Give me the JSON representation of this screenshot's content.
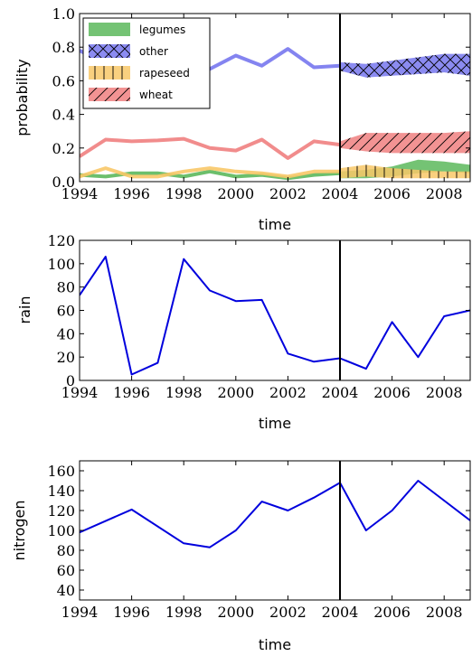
{
  "chart_data": [
    {
      "type": "area",
      "xlabel": "time",
      "ylabel": "probability",
      "xlim": [
        1994,
        2009
      ],
      "ylim": [
        0.0,
        1.0
      ],
      "x_ticks": [
        1994,
        1996,
        1998,
        2000,
        2002,
        2004,
        2006,
        2008
      ],
      "y_ticks": [
        0.0,
        0.2,
        0.4,
        0.6,
        0.8,
        1.0
      ],
      "y_tick_labels": [
        "0.0",
        "0.2",
        "0.4",
        "0.6",
        "0.8",
        "1.0"
      ],
      "forecast_start": 2004,
      "legend_position": "upper-left",
      "series": [
        {
          "name": "legumes",
          "color": "#5cb85c",
          "hatch": "none",
          "x": [
            1994,
            1995,
            1996,
            1997,
            1998,
            1999,
            2000,
            2001,
            2002,
            2003,
            2004
          ],
          "values": [
            0.04,
            0.03,
            0.05,
            0.05,
            0.03,
            0.06,
            0.03,
            0.04,
            0.02,
            0.04,
            0.05
          ],
          "forecast": {
            "x": [
              2004,
              2005,
              2006,
              2007,
              2008,
              2009
            ],
            "lower": [
              0.02,
              0.02,
              0.03,
              0.05,
              0.06,
              0.05
            ],
            "upper": [
              0.06,
              0.07,
              0.09,
              0.13,
              0.12,
              0.1
            ]
          }
        },
        {
          "name": "other",
          "color": "#7777ee",
          "hatch": "cross",
          "x": [
            1994,
            1995,
            1996,
            1997,
            1998,
            1999,
            2000,
            2001,
            2002,
            2003,
            2004
          ],
          "values": [
            0.78,
            0.7,
            0.7,
            0.68,
            0.68,
            0.67,
            0.75,
            0.69,
            0.79,
            0.68,
            0.69
          ],
          "forecast": {
            "x": [
              2004,
              2005,
              2006,
              2007,
              2008,
              2009
            ],
            "lower": [
              0.66,
              0.62,
              0.63,
              0.64,
              0.65,
              0.63
            ],
            "upper": [
              0.71,
              0.7,
              0.72,
              0.74,
              0.76,
              0.76
            ]
          }
        },
        {
          "name": "rapeseed",
          "color": "#f8c868",
          "hatch": "vertical",
          "x": [
            1994,
            1995,
            1996,
            1997,
            1998,
            1999,
            2000,
            2001,
            2002,
            2003,
            2004
          ],
          "values": [
            0.03,
            0.08,
            0.03,
            0.03,
            0.06,
            0.08,
            0.06,
            0.05,
            0.03,
            0.06,
            0.06
          ],
          "forecast": {
            "x": [
              2004,
              2005,
              2006,
              2007,
              2008,
              2009
            ],
            "lower": [
              0.02,
              0.03,
              0.02,
              0.02,
              0.02,
              0.02
            ],
            "upper": [
              0.08,
              0.1,
              0.08,
              0.07,
              0.06,
              0.06
            ]
          }
        },
        {
          "name": "wheat",
          "color": "#f08080",
          "hatch": "diagonal",
          "x": [
            1994,
            1995,
            1996,
            1997,
            1998,
            1999,
            2000,
            2001,
            2002,
            2003,
            2004
          ],
          "values": [
            0.15,
            0.25,
            0.24,
            0.245,
            0.255,
            0.2,
            0.185,
            0.25,
            0.14,
            0.24,
            0.22
          ],
          "forecast": {
            "x": [
              2004,
              2005,
              2006,
              2007,
              2008,
              2009
            ],
            "lower": [
              0.2,
              0.18,
              0.17,
              0.17,
              0.17,
              0.17
            ],
            "upper": [
              0.24,
              0.29,
              0.29,
              0.29,
              0.29,
              0.3
            ]
          }
        }
      ]
    },
    {
      "type": "line",
      "xlabel": "time",
      "ylabel": "rain",
      "xlim": [
        1994,
        2009
      ],
      "ylim": [
        0,
        120
      ],
      "x_ticks": [
        1994,
        1996,
        1998,
        2000,
        2002,
        2004,
        2006,
        2008
      ],
      "y_ticks": [
        0,
        20,
        40,
        60,
        80,
        100,
        120
      ],
      "y_tick_labels": [
        "0",
        "20",
        "40",
        "60",
        "80",
        "100",
        "120"
      ],
      "forecast_start": 2004,
      "series": [
        {
          "color": "#0000dd",
          "x": [
            1994,
            1995,
            1996,
            1997,
            1998,
            1999,
            2000,
            2001,
            2002,
            2003,
            2004,
            2005,
            2006,
            2007,
            2008,
            2009
          ],
          "values": [
            73,
            106,
            5,
            15,
            104,
            77,
            68,
            69,
            23,
            16,
            19,
            10,
            50,
            20,
            55,
            60
          ]
        }
      ]
    },
    {
      "type": "line",
      "xlabel": "time",
      "ylabel": "nitrogen",
      "xlim": [
        1994,
        2009
      ],
      "ylim": [
        30,
        170
      ],
      "x_ticks": [
        1994,
        1996,
        1998,
        2000,
        2002,
        2004,
        2006,
        2008
      ],
      "y_ticks": [
        40,
        60,
        80,
        100,
        120,
        140,
        160
      ],
      "y_tick_labels": [
        "40",
        "60",
        "80",
        "100",
        "120",
        "140",
        "160"
      ],
      "forecast_start": 2004,
      "series": [
        {
          "color": "#0000dd",
          "x": [
            1994,
            1996,
            1998,
            1999,
            2000,
            2001,
            2002,
            2003,
            2004,
            2005,
            2006,
            2007,
            2008,
            2009
          ],
          "values": [
            98,
            121,
            87,
            83,
            100,
            129,
            120,
            133,
            148,
            100,
            120,
            150,
            130,
            110
          ]
        }
      ]
    }
  ]
}
